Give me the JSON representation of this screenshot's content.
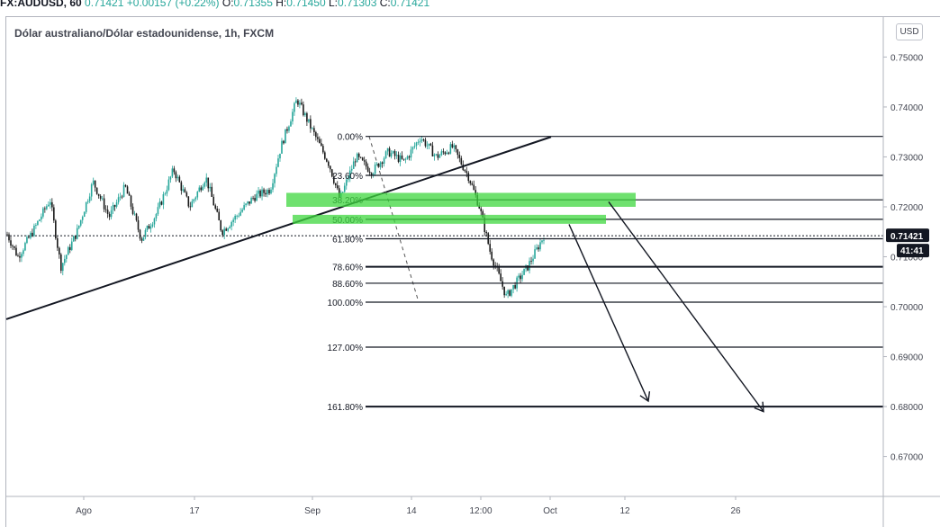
{
  "header": {
    "symbol": "FX:AUDUSD, 60",
    "last": "0.71421",
    "change": "+0.00157 (+0.22%)",
    "o_label": "O:",
    "o_value": "0.71355",
    "h_label": "H:",
    "h_value": "0.71450",
    "l_label": "L:",
    "l_value": "0.71303",
    "c_label": "C:",
    "c_value": "0.71421"
  },
  "pair_title": "Dólar australiano/Dólar estadounidense, 1h, FXCM",
  "currency": "USD",
  "colors": {
    "candle_up": "#26a69a",
    "candle_dn": "#1a1a1a",
    "zone": "#3fd73f",
    "last_price_bg": "#131722",
    "grid": "#e0e3eb"
  },
  "chart_data": {
    "type": "candlestick",
    "title": "Dólar australiano/Dólar estadounidense, 1h, FXCM",
    "y_axis": {
      "ticks": [
        "0.75000",
        "0.74000",
        "0.73000",
        "0.72000",
        "0.71000",
        "0.70000",
        "0.69000",
        "0.68000",
        "0.67000"
      ],
      "range": [
        0.662,
        0.758
      ]
    },
    "x_axis": {
      "ticks": [
        "Ago",
        "17",
        "Sep",
        "14",
        "12:00",
        "Oct",
        "12",
        "26"
      ]
    },
    "last_price": "0.71421",
    "countdown": "41:41",
    "price_path": [
      [
        0,
        0.7145
      ],
      [
        0.02,
        0.71
      ],
      [
        0.05,
        0.7155
      ],
      [
        0.08,
        0.7215
      ],
      [
        0.1,
        0.708
      ],
      [
        0.13,
        0.715
      ],
      [
        0.16,
        0.725
      ],
      [
        0.19,
        0.718
      ],
      [
        0.22,
        0.724
      ],
      [
        0.25,
        0.7135
      ],
      [
        0.28,
        0.719
      ],
      [
        0.31,
        0.7275
      ],
      [
        0.34,
        0.72
      ],
      [
        0.37,
        0.726
      ],
      [
        0.4,
        0.715
      ],
      [
        0.43,
        0.7185
      ],
      [
        0.46,
        0.722
      ],
      [
        0.49,
        0.7235
      ],
      [
        0.51,
        0.732
      ],
      [
        0.54,
        0.7415
      ],
      [
        0.57,
        0.735
      ],
      [
        0.6,
        0.7285
      ],
      [
        0.62,
        0.7215
      ],
      [
        0.65,
        0.73
      ],
      [
        0.68,
        0.727
      ],
      [
        0.71,
        0.731
      ],
      [
        0.74,
        0.729
      ],
      [
        0.77,
        0.734
      ],
      [
        0.8,
        0.73
      ],
      [
        0.83,
        0.732
      ],
      [
        0.86,
        0.726
      ],
      [
        0.88,
        0.72
      ],
      [
        0.9,
        0.711
      ],
      [
        0.93,
        0.702
      ],
      [
        0.95,
        0.705
      ],
      [
        0.97,
        0.708
      ],
      [
        1.0,
        0.7142
      ]
    ],
    "trendline": {
      "from": [
        "start",
        0.6975
      ],
      "to": [
        "Oct",
        0.734
      ]
    },
    "fib_levels": [
      {
        "label": "0.00%",
        "price": 0.7341
      },
      {
        "label": "23.60%",
        "price": 0.7263
      },
      {
        "label": "38.20%",
        "price": 0.7214
      },
      {
        "label": "50.00%",
        "price": 0.7175
      },
      {
        "label": "61.80%",
        "price": 0.7136
      },
      {
        "label": "78.60%",
        "price": 0.708
      },
      {
        "label": "88.60%",
        "price": 0.7047
      },
      {
        "label": "100.00%",
        "price": 0.7009
      },
      {
        "label": "127.00%",
        "price": 0.6919
      },
      {
        "label": "161.80%",
        "price": 0.68
      }
    ],
    "zones": [
      {
        "price_top": 0.7228,
        "price_bottom": 0.72
      },
      {
        "price_top": 0.7184,
        "price_bottom": 0.7166
      }
    ],
    "projection_targets": [
      0.68,
      0.679
    ]
  }
}
